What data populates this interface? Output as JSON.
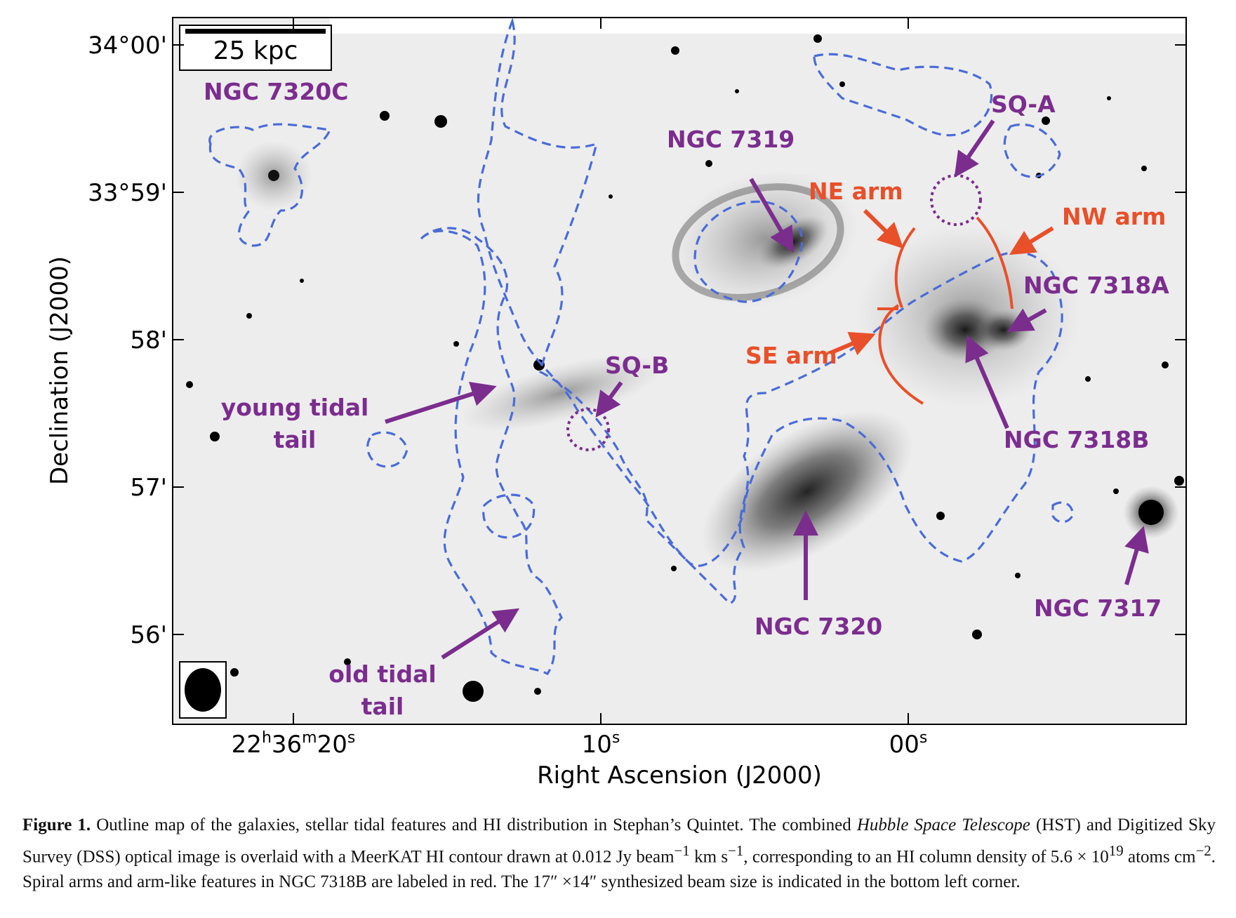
{
  "figure": {
    "scalebar_label": "25 kpc",
    "yaxis_label": "Declination (J2000)",
    "xaxis_label": "Right Ascension (J2000)",
    "y_ticks": [
      "34°00'",
      "33°59'",
      "58'",
      "57'",
      "56'"
    ],
    "x_ticks": [
      {
        "main": "22",
        "h": "h",
        "m1": "36",
        "m": "m",
        "s1": "20",
        "s": "s"
      },
      {
        "main": "10",
        "s": "s"
      },
      {
        "main": "00",
        "s": "s"
      }
    ],
    "galaxy_labels": [
      "NGC 7320C",
      "NGC 7319",
      "SQ-A",
      "NGC 7318A",
      "SQ-B",
      "NGC 7318B",
      "NGC 7320",
      "NGC 7317"
    ],
    "feature_labels": {
      "young_tidal_tail": [
        "young tidal",
        "tail"
      ],
      "old_tidal_tail": [
        "old tidal",
        "tail"
      ]
    },
    "arm_labels": [
      "NE arm",
      "NW arm",
      "SE arm"
    ],
    "colors": {
      "purple": "#7B2D8E",
      "red": "#E8502A",
      "contour_blue": "#4A6BD8",
      "background_gray": "#ededed"
    }
  },
  "caption": {
    "label": "Figure 1.",
    "t1": " Outline map of the galaxies, stellar tidal features and H",
    "hi1": "I",
    "t2": " distribution in Stephan’s Quintet. The combined ",
    "hst_italic": "Hubble Space Telescope",
    "t3": " (HST) and Digitized Sky Survey (DSS) optical image is overlaid with a MeerKAT H",
    "hi2": "I",
    "t4": " contour drawn at 0.012 Jy beam",
    "sup1": "−1",
    "t5": " km s",
    "sup2": "−1",
    "t6": ", corresponding to an H",
    "hi3": "I",
    "t7": " column density of 5.6 × 10",
    "sup3": "19",
    "t8": " atoms cm",
    "sup4": "−2",
    "t9": ". Spiral arms and arm-like features in NGC 7318B are labeled in red. The 17",
    "dq1": "″",
    "t10": " ×14",
    "dq2": "″",
    "t11": " synthesized beam size is indicated in the bottom left corner."
  }
}
